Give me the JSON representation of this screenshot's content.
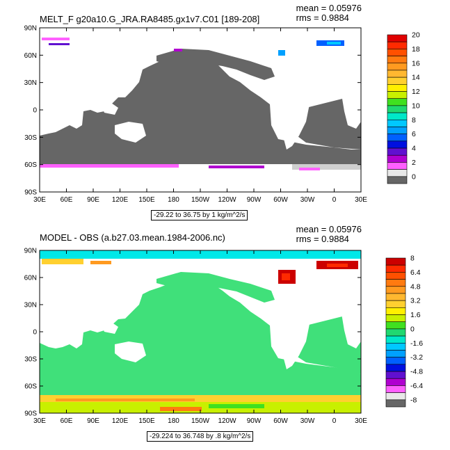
{
  "top": {
    "title": "MELT_F g20a10.G_JRA.RA8485.gx1v7.C01 [189-208]",
    "mean": "mean = 0.05976",
    "rms": "rms = 0.9884",
    "range": "-29.22 to 36.75 by 1 kg/m^2/s",
    "colorbar_labels": [
      "20",
      "18",
      "16",
      "14",
      "12",
      "10",
      "8",
      "6",
      "4",
      "2",
      "0"
    ],
    "colorbar_colors": [
      "#e00000",
      "#ff2a00",
      "#ff5000",
      "#ff7a10",
      "#ff9a20",
      "#ffb830",
      "#ffd030",
      "#fff000",
      "#c8f000",
      "#40e020",
      "#20d870",
      "#00e8c8",
      "#00c8ff",
      "#00a0ff",
      "#0060ff",
      "#0010e0",
      "#6010d0",
      "#b000d0",
      "#ff60ff",
      "#e8e8e8",
      "#666666"
    ]
  },
  "bottom": {
    "title": "MODEL - OBS (a.b27.03.mean.1984-2006.nc)",
    "mean": "mean = 0.05976",
    "rms": "rms = 0.9884",
    "range": "-29.224 to 36.748 by .8 kg/m^2/s",
    "colorbar_labels": [
      "8",
      "6.4",
      "4.8",
      "3.2",
      "1.6",
      "0",
      "-1.6",
      "-3.2",
      "-4.8",
      "-6.4",
      "-8"
    ],
    "colorbar_colors": [
      "#cc0000",
      "#ff2a00",
      "#ff5000",
      "#ff7a10",
      "#ff9a20",
      "#ffb830",
      "#ffd030",
      "#fff000",
      "#c8f000",
      "#40e020",
      "#20d870",
      "#00e8c8",
      "#00c8ff",
      "#00a0ff",
      "#0060ff",
      "#0010e0",
      "#6010d0",
      "#b000d0",
      "#ff60ff",
      "#e8e8e8",
      "#666666"
    ]
  },
  "axes": {
    "lat_labels": [
      "90N",
      "60N",
      "30N",
      "0",
      "30S",
      "60S",
      "90S"
    ],
    "lon_labels": [
      "30E",
      "60E",
      "90E",
      "120E",
      "150E",
      "180",
      "150W",
      "120W",
      "90W",
      "60W",
      "30W",
      "0",
      "30E"
    ]
  },
  "colors": {
    "ocean_top": "#666666",
    "ocean_bottom": "#40e07a",
    "land": "#ffffff"
  }
}
